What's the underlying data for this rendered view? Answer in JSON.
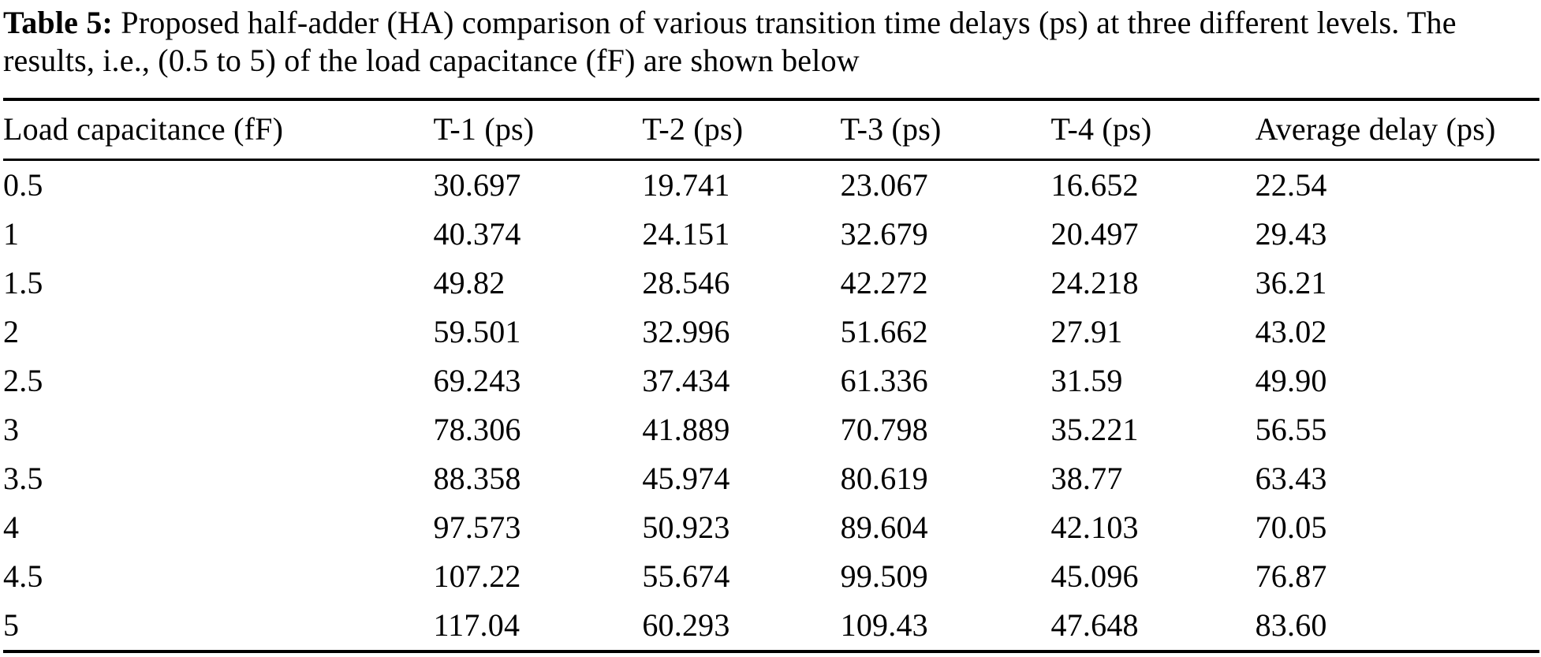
{
  "caption": {
    "label": "Table 5:",
    "text": " Proposed half-adder (HA) comparison of various transition time delays (ps) at three different levels. The results, i.e., (0.5 to 5) of the load capacitance (fF) are shown below"
  },
  "table": {
    "columns": [
      "Load capacitance (fF)",
      "T-1 (ps)",
      "T-2 (ps)",
      "T-3 (ps)",
      "T-4 (ps)",
      "Average delay (ps)"
    ],
    "rows": [
      [
        "0.5",
        "30.697",
        "19.741",
        "23.067",
        "16.652",
        "22.54"
      ],
      [
        "1",
        "40.374",
        "24.151",
        "32.679",
        "20.497",
        "29.43"
      ],
      [
        "1.5",
        "49.82",
        "28.546",
        "42.272",
        "24.218",
        "36.21"
      ],
      [
        "2",
        "59.501",
        "32.996",
        "51.662",
        "27.91",
        "43.02"
      ],
      [
        "2.5",
        "69.243",
        "37.434",
        "61.336",
        "31.59",
        "49.90"
      ],
      [
        "3",
        "78.306",
        "41.889",
        "70.798",
        "35.221",
        "56.55"
      ],
      [
        "3.5",
        "88.358",
        "45.974",
        "80.619",
        "38.77",
        "63.43"
      ],
      [
        "4",
        "97.573",
        "50.923",
        "89.604",
        "42.103",
        "70.05"
      ],
      [
        "4.5",
        "107.22",
        "55.674",
        "99.509",
        "45.096",
        "76.87"
      ],
      [
        "5",
        "117.04",
        "60.293",
        "109.43",
        "47.648",
        "83.60"
      ]
    ]
  }
}
